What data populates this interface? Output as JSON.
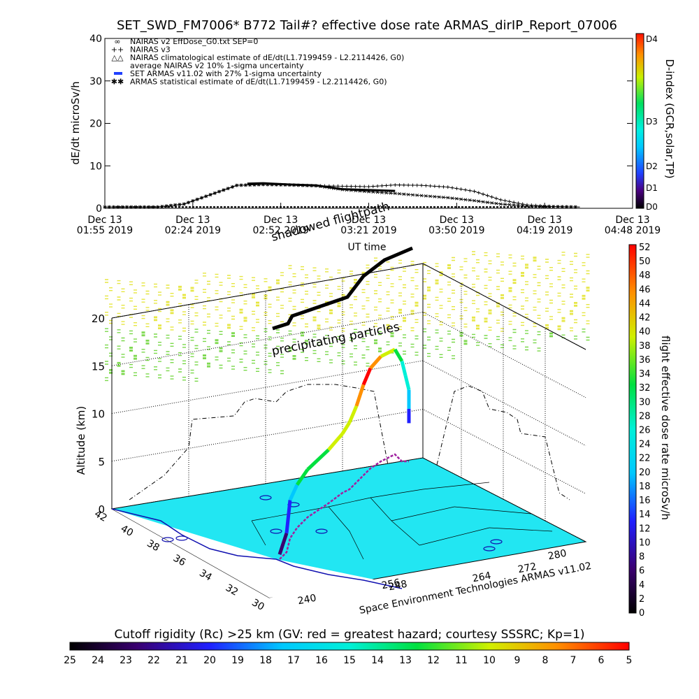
{
  "chart_data": [
    {
      "type": "line",
      "title": "SET_SWD_FM7006* B772 Tail#? effective dose rate ARMAS_dirIP_Report_07006",
      "xlabel": "UT time",
      "ylabel": "dE/dt microSv/h",
      "ylim": [
        0,
        40
      ],
      "y_ticks": [
        "0",
        "10",
        "20",
        "30",
        "40"
      ],
      "x_ticks": [
        {
          "day": "Dec 13",
          "time": "01:55 2019"
        },
        {
          "day": "Dec 13",
          "time": "02:24 2019"
        },
        {
          "day": "Dec 13",
          "time": "02:52 2019"
        },
        {
          "day": "Dec 13",
          "time": "03:21 2019"
        },
        {
          "day": "Dec 13",
          "time": "03:50 2019"
        },
        {
          "day": "Dec 13",
          "time": "04:19 2019"
        },
        {
          "day": "Dec 13",
          "time": "04:48 2019"
        }
      ],
      "legend": [
        {
          "marker": "∞",
          "label": "NAIRAS v2 EffDose_G0.txt SEP=0"
        },
        {
          "marker": "++",
          "label": "NAIRAS v3"
        },
        {
          "marker": "△△",
          "label": "NAIRAS climatological estimate of dE/dt(L1.7199459 - L2.2114426, G0)"
        },
        {
          "marker": "",
          "label": "average NAIRAS v2 10% 1-sigma uncertainty"
        },
        {
          "marker": "",
          "label": "SET ARMAS v11.02 with 27% 1-sigma uncertainty"
        },
        {
          "marker": "✱✱",
          "label": "ARMAS statistical estimate of dE/dt(L1.7199459 - L2.2114426, G0)"
        }
      ],
      "legend_placement": "top-left",
      "series": [
        {
          "name": "NAIRAS v3",
          "x": [
            0,
            0.05,
            0.1,
            0.15,
            0.2,
            0.25,
            0.3,
            0.35,
            0.4,
            0.45,
            0.5,
            0.55,
            0.6,
            0.65,
            0.7,
            0.75,
            0.8,
            0.85,
            0.9
          ],
          "values": [
            0.3,
            0.3,
            0.3,
            1.0,
            3.2,
            5.4,
            5.6,
            5.5,
            5.3,
            5.2,
            5.1,
            5.5,
            5.4,
            5.0,
            4.0,
            2.0,
            0.8,
            0.4,
            0.3
          ]
        },
        {
          "name": "NAIRAS v2 EffDose_G0.txt SEP=0",
          "x": [
            0,
            0.05,
            0.1,
            0.15,
            0.2,
            0.25,
            0.3,
            0.35,
            0.4,
            0.45,
            0.5,
            0.55,
            0.6,
            0.65,
            0.7,
            0.75,
            0.8,
            0.85,
            0.9
          ],
          "values": [
            0.3,
            0.3,
            0.3,
            1.0,
            3.2,
            5.4,
            5.6,
            5.5,
            5.3,
            4.4,
            3.9,
            3.5,
            3.0,
            2.5,
            1.8,
            1.0,
            0.5,
            0.4,
            0.3
          ]
        },
        {
          "name": "SET ARMAS v11.02 with 27% 1-sigma uncertainty",
          "x": [
            0.27,
            0.3,
            0.35,
            0.4,
            0.45,
            0.5,
            0.55
          ],
          "values": [
            5.8,
            5.9,
            5.6,
            5.4,
            4.5,
            4.3,
            4.1
          ]
        }
      ],
      "x_range": [
        0,
        1
      ]
    },
    {
      "type": "scatter",
      "xlabel": "",
      "ylabel": "Altitude (km)",
      "zlim": [
        0,
        20
      ],
      "z_ticks": [
        "0",
        "5",
        "10",
        "15",
        "20"
      ],
      "lat_ticks": [
        "42",
        "40",
        "38",
        "36",
        "34",
        "32",
        "30"
      ],
      "lon_ticks_front": [
        "240",
        "248"
      ],
      "lon_ticks_right": [
        "256",
        "264",
        "272",
        "280"
      ],
      "annotations": [
        "shadowed flightpath",
        "precipitating particles"
      ],
      "credit": "Space Environment Technologies ARMAS v11.02",
      "flight_track_altitude_km": [
        0.5,
        2.0,
        4.0,
        4.5,
        5.0,
        5.6,
        6.2,
        7.0,
        8.0,
        9.5,
        10.5,
        11.0,
        11.0,
        10.5,
        9.0,
        7.5,
        5.5,
        4.0
      ],
      "flight_track_dose_microSv_h": [
        4,
        10,
        20,
        30,
        34,
        36,
        38,
        42,
        46,
        50,
        48,
        40,
        32,
        28,
        24,
        20,
        16,
        12
      ]
    },
    {
      "type": "heatmap",
      "title": "Cutoff rigidity (Rc) >25 km (GV: red = greatest hazard; courtesy SSSRC; Kp=1)",
      "colorbar_ticks": [
        "25",
        "24",
        "23",
        "22",
        "21",
        "20",
        "19",
        "18",
        "17",
        "16",
        "15",
        "14",
        "13",
        "12",
        "11",
        "10",
        "9",
        "8",
        "7",
        "6",
        "5"
      ],
      "colorbar_range": [
        25,
        5
      ],
      "colorbar_orientation": "horizontal-bottom"
    },
    {
      "type": "heatmap",
      "ylabel": "D-index (GCR,solar,TP)",
      "colorbar_ticks": [
        "D0",
        "D1",
        "D2",
        "D3",
        "D4"
      ],
      "colorbar_orientation": "vertical-right-top"
    },
    {
      "type": "heatmap",
      "ylabel": "flight effective dose rate microSv/h",
      "colorbar_ticks": [
        "0",
        "2",
        "4",
        "6",
        "8",
        "10",
        "12",
        "14",
        "16",
        "18",
        "20",
        "22",
        "24",
        "26",
        "28",
        "30",
        "32",
        "34",
        "36",
        "38",
        "40",
        "42",
        "44",
        "46",
        "48",
        "50",
        "52"
      ],
      "colorbar_range": [
        0,
        52
      ],
      "colorbar_orientation": "vertical-right-bottom"
    }
  ],
  "colors": {
    "land": "#22e6f2",
    "coast": "#1010b0",
    "accent_blue": "#2040ff",
    "particles_yellow": "#e6e640",
    "particles_green": "#7ad84a",
    "flightpath": "#000000"
  }
}
